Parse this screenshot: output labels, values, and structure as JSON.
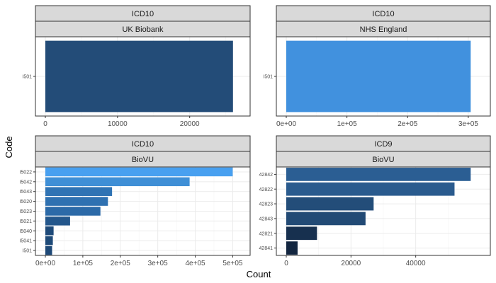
{
  "chart_data": {
    "type": "bar",
    "orientation": "horizontal",
    "xlabel": "Count",
    "ylabel": "Code",
    "grid": true,
    "facets": [
      {
        "strip_top": "ICD10",
        "strip_bottom": "UK Biobank",
        "categories": [
          "I501"
        ],
        "values": [
          26000
        ],
        "colors": [
          "#234c78"
        ],
        "xlim": [
          0,
          27000
        ],
        "xticks": [
          0,
          10000,
          20000
        ],
        "xtick_labels": [
          "0",
          "10000",
          "20000"
        ]
      },
      {
        "strip_top": "ICD10",
        "strip_bottom": "NHS England",
        "categories": [
          "I501"
        ],
        "values": [
          304000
        ],
        "colors": [
          "#4191de"
        ],
        "xlim": [
          0,
          320000
        ],
        "xticks": [
          0,
          100000,
          200000,
          300000
        ],
        "xtick_labels": [
          "0e+00",
          "1e+05",
          "2e+05",
          "3e+05"
        ]
      },
      {
        "strip_top": "ICD10",
        "strip_bottom": "BioVU",
        "categories": [
          "I5022",
          "I5042",
          "I5043",
          "I5020",
          "I5023",
          "I5021",
          "I5040",
          "I5041",
          "I501"
        ],
        "values": [
          500000,
          385000,
          178000,
          167000,
          147000,
          66000,
          22000,
          20000,
          18000
        ],
        "colors": [
          "#48a0f0",
          "#3f8fd6",
          "#2f73b4",
          "#2f71b1",
          "#2c6aa8",
          "#24578c",
          "#1e4a79",
          "#1e4a78",
          "#1e4977"
        ],
        "xlim": [
          0,
          520000
        ],
        "xticks": [
          0,
          100000,
          200000,
          300000,
          400000,
          500000
        ],
        "xtick_labels": [
          "0e+00",
          "1e+05",
          "2e+05",
          "3e+05",
          "4e+05",
          "5e+05"
        ]
      },
      {
        "strip_top": "ICD9",
        "strip_bottom": "BioVU",
        "categories": [
          "42842",
          "42822",
          "42823",
          "42843",
          "42821",
          "42841"
        ],
        "values": [
          57000,
          52000,
          27000,
          24500,
          9500,
          3500
        ],
        "colors": [
          "#2b5e93",
          "#2a5b8e",
          "#234d79",
          "#224a75",
          "#17304f",
          "#132640"
        ],
        "xlim": [
          0,
          60000
        ],
        "xticks": [
          0,
          20000,
          40000
        ],
        "xtick_labels": [
          "0",
          "20000",
          "40000"
        ]
      }
    ]
  }
}
